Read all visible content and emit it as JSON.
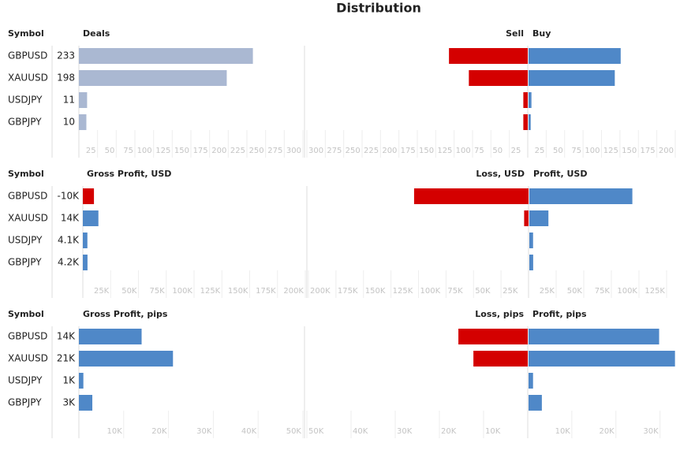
{
  "title": "Distribution",
  "chart_data": [
    {
      "type": "bar",
      "symbol_header": "Symbol",
      "categories": [
        "GBPUSD",
        "XAUUSD",
        "USDJPY",
        "GBPJPY"
      ],
      "left": {
        "title": "Deals",
        "color": "#aab8d2",
        "negative_color": "#d40000",
        "values": [
          233,
          198,
          11,
          10
        ],
        "xlim": [
          0,
          300
        ],
        "xticks": [
          25,
          50,
          75,
          100,
          125,
          150,
          175,
          200,
          225,
          250,
          275,
          300
        ]
      },
      "series": [
        {
          "name": "Sell",
          "color": "#d40000",
          "values": [
            107,
            80,
            6,
            6
          ],
          "xlim": [
            0,
            300
          ],
          "xticks": [
            25,
            50,
            75,
            100,
            125,
            150,
            175,
            200,
            225,
            250,
            275,
            300
          ]
        },
        {
          "name": "Buy",
          "color": "#4f88c8",
          "values": [
            126,
            118,
            5,
            4
          ],
          "xlim": [
            0,
            200
          ],
          "xticks": [
            25,
            50,
            75,
            100,
            125,
            150,
            175,
            200
          ]
        }
      ]
    },
    {
      "type": "bar",
      "symbol_header": "Symbol",
      "categories": [
        "GBPUSD",
        "XAUUSD",
        "USDJPY",
        "GBPJPY"
      ],
      "left": {
        "title": "Gross Profit, USD",
        "color": "#4f88c8",
        "negative_color": "#d40000",
        "values": [
          -10000,
          14000,
          4100,
          4200
        ],
        "value_labels": [
          "-10K",
          "14K",
          "4.1K",
          "4.2K"
        ],
        "xlim": [
          0,
          200000
        ],
        "xticks": [
          {
            "value": 25000,
            "label": "25K"
          },
          {
            "value": 50000,
            "label": "50K"
          },
          {
            "value": 75000,
            "label": "75K"
          },
          {
            "value": 100000,
            "label": "100K"
          },
          {
            "value": 125000,
            "label": "125K"
          },
          {
            "value": 150000,
            "label": "150K"
          },
          {
            "value": 175000,
            "label": "175K"
          },
          {
            "value": 200000,
            "label": "200K"
          }
        ]
      },
      "series": [
        {
          "name": "Loss, USD",
          "color": "#d40000",
          "values": [
            104000,
            4000,
            0,
            0
          ],
          "xlim": [
            0,
            200000
          ],
          "xticks": [
            {
              "value": 25000,
              "label": "25K"
            },
            {
              "value": 50000,
              "label": "50K"
            },
            {
              "value": 75000,
              "label": "75K"
            },
            {
              "value": 100000,
              "label": "100K"
            },
            {
              "value": 125000,
              "label": "125K"
            },
            {
              "value": 150000,
              "label": "150K"
            },
            {
              "value": 175000,
              "label": "175K"
            },
            {
              "value": 200000,
              "label": "200K"
            }
          ]
        },
        {
          "name": "Profit, USD",
          "color": "#4f88c8",
          "values": [
            94000,
            18000,
            4100,
            4200
          ],
          "xlim": [
            0,
            135000
          ],
          "xticks": [
            {
              "value": 25000,
              "label": "25K"
            },
            {
              "value": 50000,
              "label": "50K"
            },
            {
              "value": 75000,
              "label": "75K"
            },
            {
              "value": 100000,
              "label": "100K"
            },
            {
              "value": 125000,
              "label": "125K"
            }
          ]
        }
      ]
    },
    {
      "type": "bar",
      "symbol_header": "Symbol",
      "categories": [
        "GBPUSD",
        "XAUUSD",
        "USDJPY",
        "GBPJPY"
      ],
      "left": {
        "title": "Gross Profit, pips",
        "color": "#4f88c8",
        "negative_color": "#d40000",
        "values": [
          14000,
          21000,
          1000,
          3000
        ],
        "value_labels": [
          "14K",
          "21K",
          "1K",
          "3K"
        ],
        "xlim": [
          0,
          50000
        ],
        "xticks": [
          {
            "value": 10000,
            "label": "10K"
          },
          {
            "value": 20000,
            "label": "20K"
          },
          {
            "value": 30000,
            "label": "30K"
          },
          {
            "value": 40000,
            "label": "40K"
          },
          {
            "value": 50000,
            "label": "50K"
          }
        ]
      },
      "series": [
        {
          "name": "Loss, pips",
          "color": "#d40000",
          "values": [
            15700,
            12300,
            0,
            0
          ],
          "xlim": [
            0,
            50000
          ],
          "xticks": [
            {
              "value": 10000,
              "label": "10K"
            },
            {
              "value": 20000,
              "label": "20K"
            },
            {
              "value": 30000,
              "label": "30K"
            },
            {
              "value": 40000,
              "label": "40K"
            },
            {
              "value": 50000,
              "label": "50K"
            }
          ]
        },
        {
          "name": "Profit, pips",
          "color": "#4f88c8",
          "values": [
            29800,
            33400,
            1200,
            3200
          ],
          "xlim": [
            0,
            34000
          ],
          "xticks": [
            {
              "value": 10000,
              "label": "10K"
            },
            {
              "value": 20000,
              "label": "20K"
            },
            {
              "value": 30000,
              "label": "30K"
            }
          ]
        }
      ]
    }
  ]
}
